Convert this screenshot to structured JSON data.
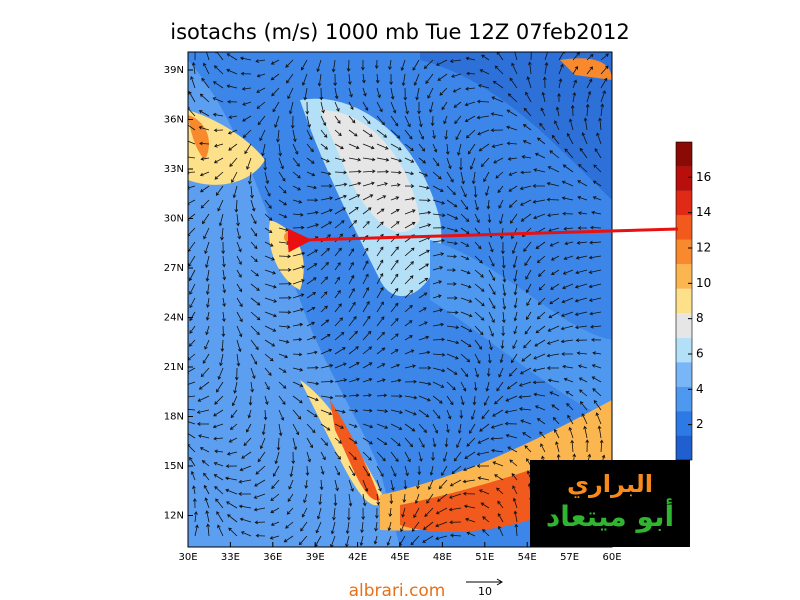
{
  "title": "isotachs (m/s) 1000 mb Tue 12Z 07feb2012",
  "lat_labels": [
    "39N",
    "36N",
    "33N",
    "30N",
    "27N",
    "24N",
    "21N",
    "18N",
    "15N",
    "12N"
  ],
  "lon_labels": [
    "30E",
    "33E",
    "36E",
    "39E",
    "42E",
    "45E",
    "48E",
    "51E",
    "54E",
    "57E",
    "60E"
  ],
  "colorbar": {
    "ticks": [
      2,
      4,
      6,
      8,
      10,
      12,
      14,
      16
    ],
    "colors": [
      "#1f5fd0",
      "#2d7ae6",
      "#4e98f0",
      "#78b6f7",
      "#b3e0f7",
      "#e6e6e6",
      "#fde08a",
      "#fcb64f",
      "#f88a2d",
      "#f2591c",
      "#e02a15",
      "#b80f0c",
      "#8a0a06"
    ]
  },
  "watermark": {
    "line1": "البراري",
    "line2": "أبو ميتعاد"
  },
  "footer": "albrari.com",
  "vector_scale": "10"
}
